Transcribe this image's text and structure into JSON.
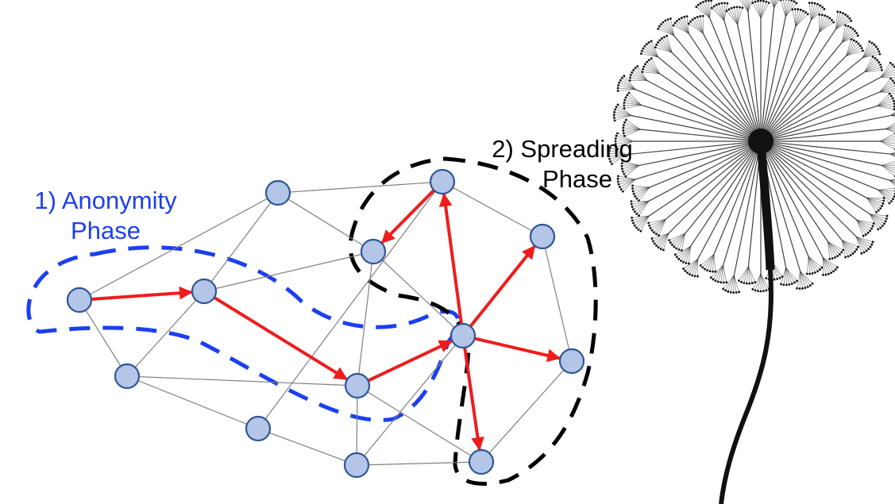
{
  "labels": {
    "anonymity": {
      "line1": "1) Anonymity",
      "line2": "Phase",
      "color": "#1c3ff0"
    },
    "spreading": {
      "line1": "2) Spreading",
      "line2": "Phase",
      "color": "#000000"
    }
  },
  "colors": {
    "node_fill": "#b3c6e7",
    "node_stroke": "#2f5597",
    "edge": "#808080",
    "arrow": "#ee1c1c",
    "anonymity_outline": "#1c3ff0",
    "spreading_outline": "#000000",
    "dandelion": "#111111"
  },
  "graph": {
    "nodes": [
      "n1",
      "n2",
      "n3",
      "n4",
      "n5",
      "n6",
      "n7",
      "n8",
      "n9",
      "n10",
      "n11",
      "n12",
      "n13"
    ],
    "edges": [
      [
        "n1",
        "n2"
      ],
      [
        "n1",
        "n3"
      ],
      [
        "n1",
        "n7"
      ],
      [
        "n2",
        "n4"
      ],
      [
        "n2",
        "n5"
      ],
      [
        "n2",
        "n3"
      ],
      [
        "n3",
        "n7"
      ],
      [
        "n3",
        "n4"
      ],
      [
        "n3",
        "n8"
      ],
      [
        "n4",
        "n8"
      ],
      [
        "n4",
        "n9"
      ],
      [
        "n5",
        "n6"
      ],
      [
        "n5",
        "n9"
      ],
      [
        "n5",
        "n10"
      ],
      [
        "n6",
        "n12"
      ],
      [
        "n7",
        "n8"
      ],
      [
        "n7",
        "n10"
      ],
      [
        "n8",
        "n9"
      ],
      [
        "n8",
        "n13"
      ],
      [
        "n8",
        "n11"
      ],
      [
        "n9",
        "n11"
      ],
      [
        "n9",
        "n12"
      ],
      [
        "n10",
        "n11"
      ],
      [
        "n11",
        "n13"
      ],
      [
        "n13",
        "n12"
      ]
    ],
    "arrows": [
      [
        "n1",
        "n3"
      ],
      [
        "n3",
        "n8"
      ],
      [
        "n8",
        "n9"
      ],
      [
        "n9",
        "n5"
      ],
      [
        "n5",
        "n4"
      ],
      [
        "n9",
        "n6"
      ],
      [
        "n9",
        "n12"
      ],
      [
        "n9",
        "n13"
      ]
    ]
  }
}
